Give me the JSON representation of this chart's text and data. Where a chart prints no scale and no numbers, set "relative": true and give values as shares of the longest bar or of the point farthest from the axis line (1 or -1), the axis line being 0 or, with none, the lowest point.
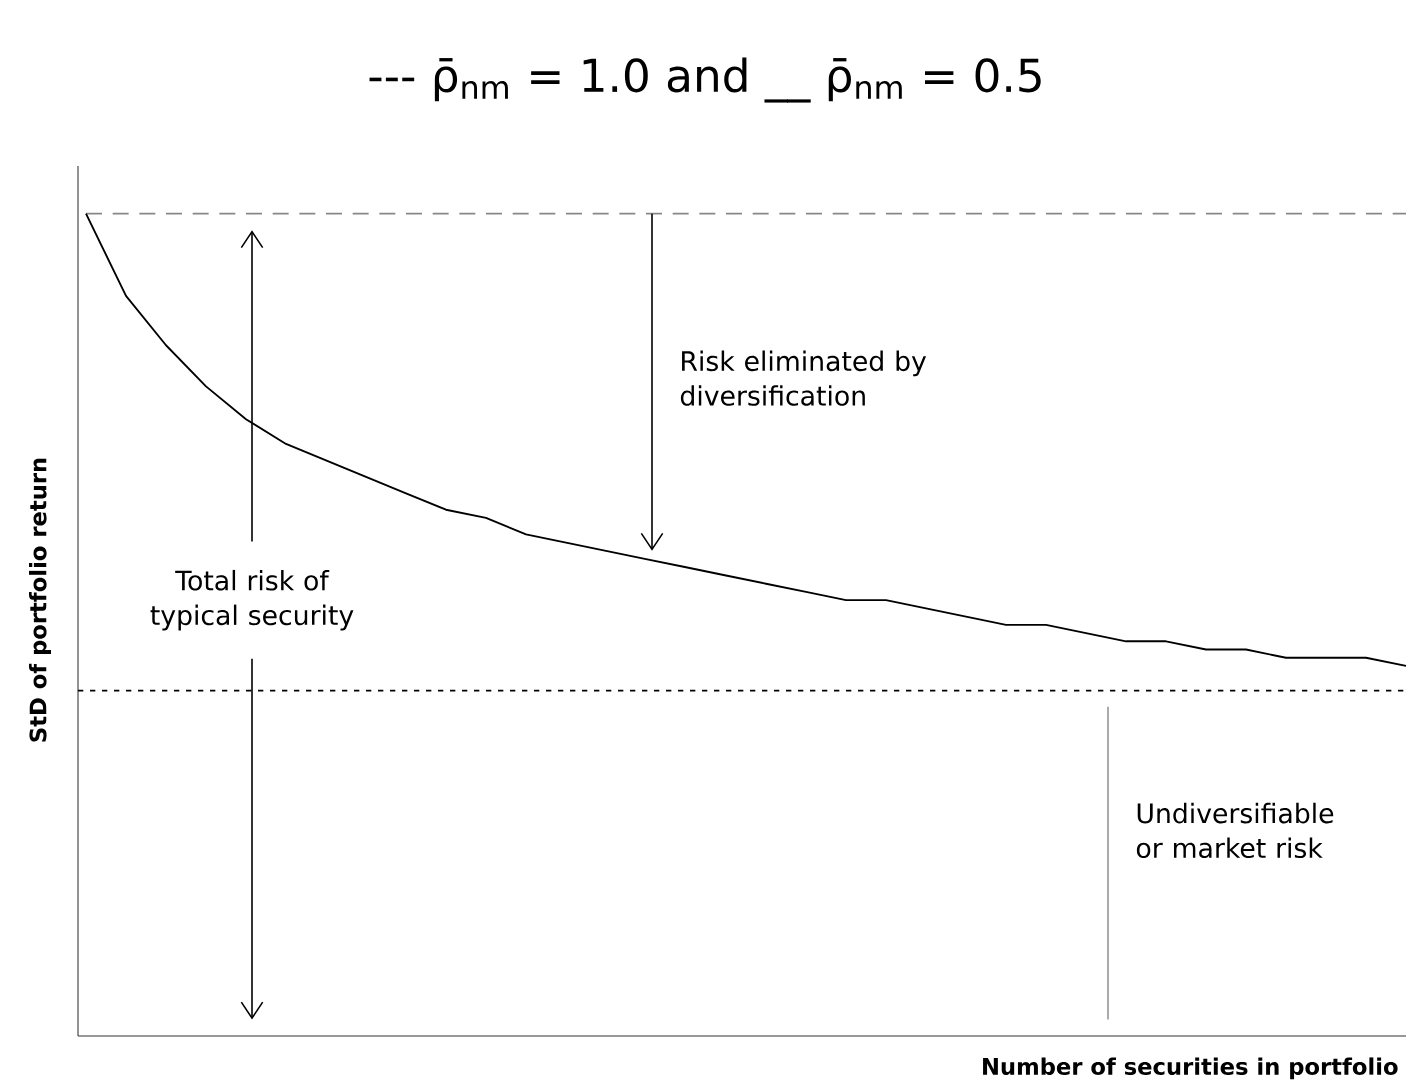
{
  "chart_data": {
    "type": "line",
    "relative": true,
    "title": "--- ρ̄$_{nm}$ = 1.0 and __ ρ̄$_{nm}$ = 0.5",
    "xlabel": "Number of securities in portfolio",
    "ylabel": "StD of portfolio return",
    "categories": [
      null,
      null,
      null,
      null,
      null,
      null,
      null,
      null,
      null,
      null,
      null,
      null,
      null,
      null,
      null,
      null,
      null,
      null,
      null,
      null,
      null,
      null,
      null,
      null,
      null,
      null,
      null,
      null,
      null,
      null,
      null,
      null,
      null,
      null
    ],
    "series": [
      {
        "color": "#888888",
        "line_style": "dashed",
        "values": [
          1,
          1,
          1,
          1,
          1,
          1,
          1,
          1,
          1,
          1,
          1,
          1,
          1,
          1,
          1,
          1,
          1,
          1,
          1,
          1,
          1,
          1,
          1,
          1,
          1,
          1,
          1,
          1,
          1,
          1,
          1,
          1,
          1,
          1
        ]
      },
      {
        "color": "#000000",
        "line_style": "solid",
        "values": [
          1.0,
          0.9,
          0.84,
          0.79,
          0.75,
          0.72,
          0.7,
          0.68,
          0.66,
          0.64,
          0.63,
          0.61,
          0.6,
          0.59,
          0.58,
          0.57,
          0.56,
          0.55,
          0.54,
          0.53,
          0.53,
          0.52,
          0.51,
          0.5,
          0.5,
          0.49,
          0.48,
          0.48,
          0.47,
          0.47,
          0.46,
          0.46,
          0.46,
          0.45
        ]
      }
    ],
    "ref_lines": [
      {
        "axis": "y",
        "value": 0.42,
        "line_style": "dotted",
        "color": "#000000"
      }
    ],
    "annotations": [
      "Total risk of typical security",
      "Risk eliminated by diversification",
      "Undiversifiable or market risk"
    ]
  }
}
